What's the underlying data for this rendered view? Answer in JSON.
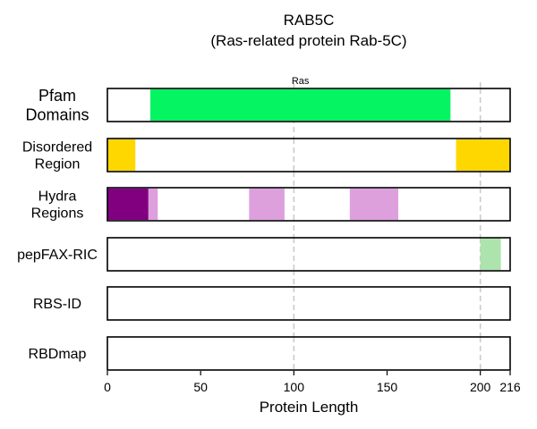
{
  "chart_data": {
    "type": "bar",
    "title": "RAB5C",
    "subtitle": "(Ras-related protein Rab-5C)",
    "xlabel": "Protein Length",
    "xlim": [
      0,
      216
    ],
    "xticks": [
      0,
      50,
      100,
      150,
      200,
      216
    ],
    "grid_lines_x": [
      100,
      200
    ],
    "tracks": [
      {
        "label": "Pfam\nDomains",
        "segments": [
          {
            "start": 23,
            "end": 184,
            "color": "#05f562",
            "label": "Ras"
          }
        ]
      },
      {
        "label": "Disordered\nRegion",
        "segments": [
          {
            "start": 0,
            "end": 15,
            "color": "#ffd700"
          },
          {
            "start": 187,
            "end": 216,
            "color": "#ffd700"
          }
        ]
      },
      {
        "label": "Hydra\nRegions",
        "segments": [
          {
            "start": 0,
            "end": 22,
            "color": "#800080"
          },
          {
            "start": 22,
            "end": 27,
            "color": "#dda0dd"
          },
          {
            "start": 76,
            "end": 95,
            "color": "#dda0dd"
          },
          {
            "start": 130,
            "end": 156,
            "color": "#dda0dd"
          }
        ]
      },
      {
        "label": "pepFAX-RIC",
        "segments": [
          {
            "start": 200,
            "end": 211,
            "color": "#ade3ad"
          }
        ]
      },
      {
        "label": "RBS-ID",
        "segments": []
      },
      {
        "label": "RBDmap",
        "segments": []
      }
    ]
  }
}
